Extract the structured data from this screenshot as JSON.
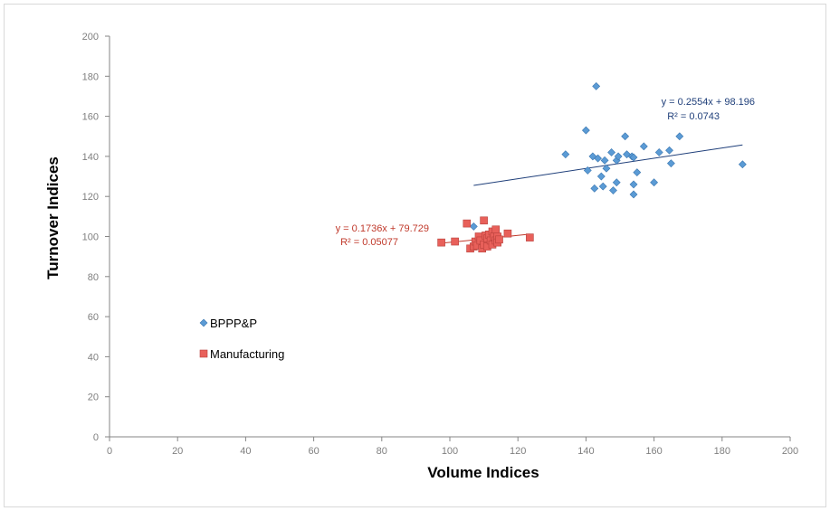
{
  "chart_data": {
    "type": "scatter",
    "xlabel": "Volume Indices",
    "ylabel": "Turnover Indices",
    "xlim": [
      0,
      200
    ],
    "ylim": [
      0,
      200
    ],
    "xticks": [
      "0",
      "20",
      "40",
      "60",
      "80",
      "100",
      "120",
      "140",
      "160",
      "180",
      "200"
    ],
    "yticks": [
      "0",
      "20",
      "40",
      "60",
      "80",
      "100",
      "120",
      "140",
      "160",
      "180",
      "200"
    ],
    "grid": false,
    "legend_position": "left-bottom",
    "series": [
      {
        "name": "BPPP&P",
        "color": "#5b9bd5",
        "marker": "diamond",
        "points": [
          [
            107,
            105
          ],
          [
            134,
            141
          ],
          [
            140,
            153
          ],
          [
            140.5,
            133
          ],
          [
            142,
            140
          ],
          [
            142.5,
            124
          ],
          [
            143,
            175
          ],
          [
            143.5,
            139
          ],
          [
            144.5,
            130
          ],
          [
            145,
            125
          ],
          [
            145.5,
            138
          ],
          [
            146,
            134
          ],
          [
            147.5,
            142
          ],
          [
            148,
            123
          ],
          [
            149,
            138
          ],
          [
            149.5,
            140
          ],
          [
            149,
            127
          ],
          [
            151.5,
            150
          ],
          [
            152,
            141
          ],
          [
            153.5,
            140
          ],
          [
            154,
            139.5
          ],
          [
            154,
            126
          ],
          [
            154,
            121
          ],
          [
            155,
            132
          ],
          [
            157,
            145
          ],
          [
            160,
            127
          ],
          [
            161.5,
            142
          ],
          [
            164.5,
            143
          ],
          [
            165,
            136.5
          ],
          [
            167.5,
            150
          ],
          [
            186,
            136
          ]
        ],
        "trendline": {
          "slope": 0.2554,
          "intercept": 98.196,
          "x_range": [
            107,
            186
          ],
          "equation": "y = 0.2554x + 98.196",
          "r2_label": "R² = 0.0743",
          "color": "#1f3f7a"
        }
      },
      {
        "name": "Manufacturing",
        "color": "#e8605a",
        "marker": "square",
        "points": [
          [
            97.5,
            97
          ],
          [
            101.5,
            97.5
          ],
          [
            105,
            106.5
          ],
          [
            106,
            94
          ],
          [
            107,
            95
          ],
          [
            107.5,
            97.5
          ],
          [
            108,
            95.5
          ],
          [
            108.5,
            100
          ],
          [
            109,
            98
          ],
          [
            109.5,
            94
          ],
          [
            110,
            108
          ],
          [
            110.5,
            100.5
          ],
          [
            110,
            96
          ],
          [
            111,
            99
          ],
          [
            111,
            95
          ],
          [
            111.5,
            101
          ],
          [
            112,
            98
          ],
          [
            112.5,
            102.5
          ],
          [
            112.5,
            96
          ],
          [
            113,
            100
          ],
          [
            113.5,
            103.5
          ],
          [
            113.5,
            98
          ],
          [
            114,
            100
          ],
          [
            114,
            97
          ],
          [
            114.5,
            98.5
          ],
          [
            117,
            101.5
          ],
          [
            123.5,
            99.5
          ]
        ],
        "trendline": {
          "slope": 0.1736,
          "intercept": 79.729,
          "x_range": [
            97.5,
            123.5
          ],
          "equation": "y = 0.1736x + 79.729",
          "r2_label": "R² = 0.05077",
          "color": "#c0392b"
        }
      }
    ]
  }
}
